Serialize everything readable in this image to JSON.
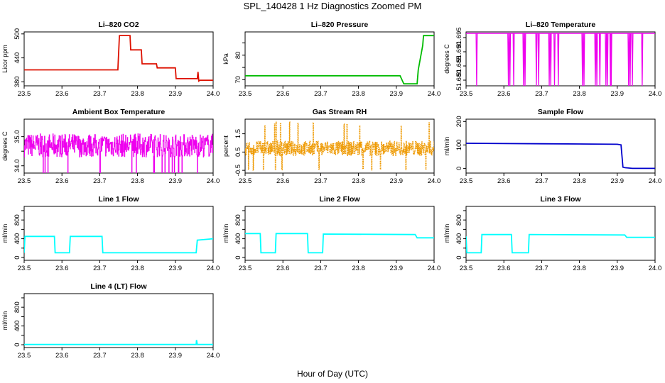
{
  "figure": {
    "title": "SPL_140428  1 Hz Diagnostics Zoomed PM",
    "xlabel": "Hour of Day (UTC)"
  },
  "chart_data": [
    {
      "type": "line",
      "title": "Li–820 CO2",
      "ylabel": "Licor ppm",
      "color": "#dd1100",
      "xlim": [
        23.5,
        24.0
      ],
      "ylim": [
        370,
        505
      ],
      "xticks": [
        "23.5",
        "23.6",
        "23.7",
        "23.8",
        "23.9",
        "24.0"
      ],
      "yticks": [
        380,
        440,
        500
      ],
      "x": [
        23.5,
        23.6,
        23.7,
        23.748,
        23.752,
        23.78,
        23.782,
        23.81,
        23.812,
        23.85,
        23.852,
        23.9,
        23.902,
        23.958,
        23.96,
        23.962,
        23.965,
        24.0
      ],
      "y": [
        410,
        410,
        410,
        410,
        496,
        496,
        460,
        460,
        425,
        425,
        415,
        415,
        388,
        388,
        405,
        382,
        384,
        384
      ]
    },
    {
      "type": "line",
      "title": "Li–820 Pressure",
      "ylabel": "kPa",
      "color": "#00bb00",
      "xlim": [
        23.5,
        24.0
      ],
      "ylim": [
        67.5,
        89.5
      ],
      "xticks": [
        "23.5",
        "23.6",
        "23.7",
        "23.8",
        "23.9",
        "24.0"
      ],
      "yticks": [
        70,
        75,
        80,
        85
      ],
      "ytick_labels": [
        "70",
        "",
        "80",
        ""
      ],
      "x": [
        23.5,
        23.76,
        23.8,
        23.9,
        23.91,
        23.92,
        23.955,
        23.958,
        23.97,
        23.972,
        24.0
      ],
      "y": [
        71.6,
        71.6,
        71.6,
        71.6,
        71.6,
        68.3,
        68.3,
        74,
        84,
        88,
        88
      ]
    },
    {
      "type": "line",
      "title": "Li–820 Temperature",
      "ylabel": "degrees C",
      "color": "#ee00ee",
      "xlim": [
        23.5,
        24.0
      ],
      "ylim": [
        51.678,
        51.697
      ],
      "xticks": [
        "23.5",
        "23.6",
        "23.7",
        "23.8",
        "23.9",
        "24.0"
      ],
      "yticks": [
        51.68,
        51.685,
        51.69,
        51.695
      ],
      "ytick_labels": [
        "51.680",
        "51.685",
        "51.690",
        "51.695"
      ],
      "baseline": 51.6965,
      "dip_to": 51.678,
      "dips_x": [
        23.528,
        23.612,
        23.616,
        23.626,
        23.652,
        23.656,
        23.686,
        23.692,
        23.72,
        23.724,
        23.734,
        23.744,
        23.808,
        23.812,
        23.842,
        23.846,
        23.854,
        23.87,
        23.874,
        23.882,
        23.884,
        23.93,
        23.934,
        23.94,
        23.966
      ]
    },
    {
      "type": "line",
      "title": "Ambient Box Temperature",
      "ylabel": "degrees C",
      "color": "#ee00ee",
      "xlim": [
        23.5,
        24.0
      ],
      "ylim": [
        33.75,
        35.6
      ],
      "xticks": [
        "23.5",
        "23.6",
        "23.7",
        "23.8",
        "23.9",
        "24.0"
      ],
      "yticks": [
        34.0,
        34.5,
        35.0
      ],
      "ytick_labels": [
        "34.0",
        "",
        "35.0"
      ],
      "band": [
        34.3,
        35.1
      ],
      "spikes": [
        33.95,
        35.45
      ]
    },
    {
      "type": "scatter",
      "title": "Gas Stream RH",
      "ylabel": "percent",
      "color": "#ee9900",
      "xlim": [
        23.5,
        24.0
      ],
      "ylim": [
        -0.65,
        2.3
      ],
      "xticks": [
        "23.5",
        "23.6",
        "23.7",
        "23.8",
        "23.9",
        "24.0"
      ],
      "yticks": [
        -0.5,
        0.5,
        1.5
      ],
      "ytick_labels": [
        "-0.5",
        "0.5",
        "1.5"
      ],
      "band": [
        0.3,
        1.1
      ],
      "spikes": [
        -0.5,
        2.2
      ]
    },
    {
      "type": "line",
      "title": "Sample Flow",
      "ylabel": "ml/min",
      "color": "#0000cc",
      "xlim": [
        23.5,
        24.0
      ],
      "ylim": [
        -20,
        210
      ],
      "xticks": [
        "23.5",
        "23.6",
        "23.7",
        "23.8",
        "23.9",
        "24.0"
      ],
      "yticks": [
        0,
        100,
        200
      ],
      "x": [
        23.5,
        23.6,
        23.7,
        23.8,
        23.9,
        23.91,
        23.915,
        23.92,
        23.94,
        24.0
      ],
      "y": [
        107,
        106,
        105,
        104,
        103,
        100,
        5,
        3,
        0,
        0
      ]
    },
    {
      "type": "line",
      "title": "Line 1 Flow",
      "ylabel": "ml/min",
      "color": "#00ffff",
      "xlim": [
        23.5,
        24.0
      ],
      "ylim": [
        -60,
        1090
      ],
      "xticks": [
        "23.5",
        "23.6",
        "23.7",
        "23.8",
        "23.9",
        "24.0"
      ],
      "yticks": [
        0,
        200,
        400,
        600,
        800,
        1000
      ],
      "ytick_labels": [
        "0",
        "",
        "400",
        "",
        "800",
        ""
      ],
      "x": [
        23.5,
        23.502,
        23.58,
        23.582,
        23.62,
        23.622,
        23.706,
        23.708,
        23.955,
        23.958,
        24.0
      ],
      "y": [
        100,
        450,
        450,
        100,
        100,
        450,
        450,
        100,
        100,
        370,
        400
      ]
    },
    {
      "type": "line",
      "title": "Line 2 Flow",
      "ylabel": "ml/min",
      "color": "#00ffff",
      "xlim": [
        23.5,
        24.0
      ],
      "ylim": [
        -60,
        1090
      ],
      "xticks": [
        "23.5",
        "23.6",
        "23.7",
        "23.8",
        "23.9",
        "24.0"
      ],
      "yticks": [
        0,
        200,
        400,
        600,
        800,
        1000
      ],
      "ytick_labels": [
        "0",
        "",
        "400",
        "",
        "800",
        ""
      ],
      "x": [
        23.5,
        23.54,
        23.542,
        23.58,
        23.582,
        23.665,
        23.667,
        23.705,
        23.707,
        23.95,
        23.955,
        24.0
      ],
      "y": [
        510,
        510,
        100,
        100,
        510,
        510,
        100,
        100,
        500,
        490,
        420,
        420
      ]
    },
    {
      "type": "line",
      "title": "Line 3 Flow",
      "ylabel": "ml/min",
      "color": "#00ffff",
      "xlim": [
        23.5,
        24.0
      ],
      "ylim": [
        -60,
        1090
      ],
      "xticks": [
        "23.5",
        "23.6",
        "23.7",
        "23.8",
        "23.9",
        "24.0"
      ],
      "yticks": [
        0,
        200,
        400,
        600,
        800,
        1000
      ],
      "ytick_labels": [
        "0",
        "",
        "400",
        "",
        "800",
        ""
      ],
      "x": [
        23.5,
        23.502,
        23.54,
        23.542,
        23.62,
        23.622,
        23.665,
        23.667,
        23.92,
        23.925,
        24.0
      ],
      "y": [
        450,
        100,
        100,
        490,
        490,
        100,
        100,
        490,
        480,
        430,
        430
      ]
    },
    {
      "type": "line",
      "title": "Line 4 (LT) Flow",
      "ylabel": "ml/min",
      "color": "#00ffff",
      "xlim": [
        23.5,
        24.0
      ],
      "ylim": [
        -60,
        1090
      ],
      "xticks": [
        "23.5",
        "23.6",
        "23.7",
        "23.8",
        "23.9",
        "24.0"
      ],
      "yticks": [
        0,
        200,
        400,
        600,
        800,
        1000
      ],
      "ytick_labels": [
        "0",
        "",
        "400",
        "",
        "800",
        ""
      ],
      "x": [
        23.5,
        23.955,
        23.956,
        23.958,
        23.96,
        24.0
      ],
      "y": [
        5,
        5,
        100,
        5,
        5,
        5
      ]
    }
  ]
}
